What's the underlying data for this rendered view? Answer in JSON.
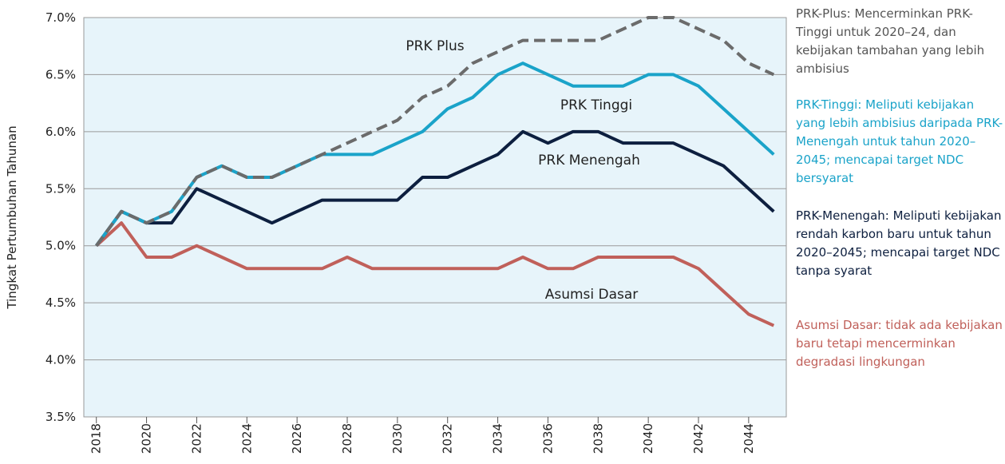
{
  "chart_data": {
    "type": "line",
    "y_label": "Tingkat Pertumbuhan Tahunan",
    "x": [
      2018,
      2019,
      2020,
      2021,
      2022,
      2023,
      2024,
      2025,
      2026,
      2027,
      2028,
      2029,
      2030,
      2031,
      2032,
      2033,
      2034,
      2035,
      2036,
      2037,
      2038,
      2039,
      2040,
      2041,
      2042,
      2043,
      2044,
      2045
    ],
    "xlim": [
      2017.5,
      2045.5
    ],
    "xticks": [
      2018,
      2020,
      2022,
      2024,
      2026,
      2028,
      2030,
      2032,
      2034,
      2036,
      2038,
      2040,
      2042,
      2044
    ],
    "ylim": [
      3.5,
      7.0
    ],
    "yticks": [
      {
        "value": 3.5,
        "label": "3.5%"
      },
      {
        "value": 4.0,
        "label": "4.0%"
      },
      {
        "value": 4.5,
        "label": "4.5%"
      },
      {
        "value": 5.0,
        "label": "5.0%"
      },
      {
        "value": 5.5,
        "label": "5.5%"
      },
      {
        "value": 6.0,
        "label": "6.0%"
      },
      {
        "value": 6.5,
        "label": "6.5%"
      },
      {
        "value": 7.0,
        "label": "7.0%"
      }
    ],
    "grid": true,
    "series": [
      {
        "name": "Asumsi Dasar",
        "color": "#c0605a",
        "values": [
          5.0,
          5.2,
          4.9,
          4.9,
          5.0,
          4.9,
          4.8,
          4.8,
          4.8,
          4.8,
          4.9,
          4.8,
          4.8,
          4.8,
          4.8,
          4.8,
          4.8,
          4.9,
          4.8,
          4.8,
          4.9,
          4.9,
          4.9,
          4.9,
          4.8,
          4.6,
          4.4,
          4.3
        ]
      },
      {
        "name": "PRK Menengah",
        "color": "#0d1f3f",
        "values": [
          5.0,
          5.3,
          5.2,
          5.2,
          5.5,
          5.4,
          5.3,
          5.2,
          5.3,
          5.4,
          5.4,
          5.4,
          5.4,
          5.6,
          5.6,
          5.7,
          5.8,
          6.0,
          5.9,
          6.0,
          6.0,
          5.9,
          5.9,
          5.9,
          5.8,
          5.7,
          5.5,
          5.3
        ]
      },
      {
        "name": "PRK Tinggi",
        "color": "#1aa3c9",
        "values": [
          5.0,
          5.3,
          5.2,
          5.3,
          5.6,
          5.7,
          5.6,
          5.6,
          5.7,
          5.8,
          5.8,
          5.8,
          5.9,
          6.0,
          6.2,
          6.3,
          6.5,
          6.6,
          6.5,
          6.4,
          6.4,
          6.4,
          6.5,
          6.5,
          6.4,
          6.2,
          6.0,
          5.8
        ]
      },
      {
        "name": "PRK Plus",
        "color": "#6b6b6b",
        "dashed": true,
        "values": [
          5.0,
          5.3,
          5.2,
          5.3,
          5.6,
          5.7,
          5.6,
          5.6,
          5.7,
          5.8,
          5.9,
          6.0,
          6.1,
          6.3,
          6.4,
          6.6,
          6.7,
          6.8,
          6.8,
          6.8,
          6.8,
          6.9,
          7.0,
          7.0,
          6.9,
          6.8,
          6.6,
          6.5
        ]
      }
    ],
    "annotations": [
      {
        "text": "PRK-Plus: Mencerminkan PRK-Tinggi untuk 2020–24, dan kebijakan tambahan yang lebih ambisius",
        "color": "#555555"
      },
      {
        "text": "PRK-Tinggi: Meliputi kebijakan yang lebih ambisius daripada PRK-Menengah untuk tahun 2020–2045; mencapai target NDC bersyarat",
        "color": "#1aa3c9"
      },
      {
        "text": "PRK-Menengah: Meliputi kebijakan rendah karbon baru untuk tahun 2020–2045; mencapai target NDC tanpa syarat",
        "color": "#0d1f3f"
      },
      {
        "text": "Asumsi Dasar: tidak ada kebijakan baru tetapi mencerminkan degradasi lingkungan",
        "color": "#c0605a"
      }
    ]
  }
}
